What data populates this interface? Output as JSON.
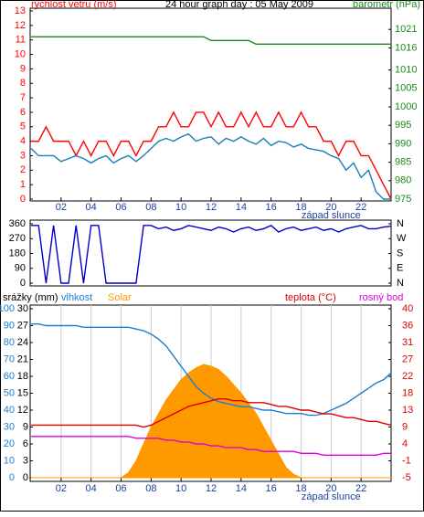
{
  "chart_data": [
    {
      "type": "line",
      "title": "24 hour graph day : 05 May 2009",
      "ylabel": "rychlost vetru (m/s)",
      "y2label": "barometr (hPa)",
      "x": [
        0,
        0.5,
        1,
        1.5,
        2,
        2.5,
        3,
        3.5,
        4,
        4.5,
        5,
        5.5,
        6,
        6.5,
        7,
        7.5,
        8,
        8.5,
        9,
        9.5,
        10,
        10.5,
        11,
        11.5,
        12,
        12.5,
        13,
        13.5,
        14,
        14.5,
        15,
        15.5,
        16,
        16.5,
        17,
        17.5,
        18,
        18.5,
        19,
        19.5,
        20,
        20.5,
        21,
        21.5,
        22,
        22.5,
        23,
        23.5,
        24
      ],
      "xlim": [
        0,
        24
      ],
      "xticks": [
        {
          "value": 2,
          "label": "02"
        },
        {
          "value": 4,
          "label": "04"
        },
        {
          "value": 6,
          "label": "06"
        },
        {
          "value": 8,
          "label": "08"
        },
        10,
        12,
        14,
        16,
        18,
        20,
        22
      ],
      "annotation": {
        "x": 20,
        "text": "západ slunce"
      },
      "ylim": [
        0,
        13
      ],
      "yticks": [
        0,
        1,
        2,
        3,
        4,
        5,
        6,
        7,
        8,
        9,
        10,
        11,
        12,
        13
      ],
      "y2lim": [
        975,
        1026
      ],
      "y2ticks": [
        975,
        980,
        985,
        990,
        995,
        1000,
        1005,
        1010,
        1016,
        1021
      ],
      "series": [
        {
          "color": "#ff0000",
          "values": [
            4,
            4,
            5,
            4,
            4,
            4,
            3,
            4,
            3,
            4,
            4,
            3,
            4,
            4,
            3,
            4,
            4,
            5,
            5,
            6,
            5,
            5,
            6,
            6,
            5,
            6,
            5,
            5,
            6,
            5,
            6,
            5,
            5,
            6,
            5,
            5,
            6,
            5,
            5,
            4,
            4,
            3,
            4,
            4,
            3,
            3,
            2,
            1,
            0
          ]
        },
        {
          "color": "#1a7fb5",
          "values": [
            3.5,
            3,
            3,
            3,
            2.6,
            2.8,
            3,
            2.8,
            2.5,
            2.8,
            3,
            2.5,
            2.8,
            3,
            2.6,
            3,
            3.5,
            4,
            4.2,
            4,
            4.3,
            4.5,
            4,
            4.2,
            4.3,
            3.8,
            4.2,
            4,
            4.3,
            4,
            3.8,
            4.2,
            3.7,
            4,
            3.9,
            3.6,
            3.8,
            3.5,
            3.4,
            3.3,
            3,
            2.8,
            2,
            2.5,
            1.5,
            2,
            0.5,
            0,
            0
          ]
        },
        {
          "color": "#1a8a1a",
          "axis": "y2",
          "values": [
            1019,
            1019,
            1019,
            1019,
            1019,
            1019,
            1019,
            1019,
            1019,
            1019,
            1019,
            1019,
            1019,
            1019,
            1019,
            1019,
            1019,
            1019,
            1019,
            1019,
            1019,
            1019,
            1019,
            1019,
            1018,
            1018,
            1018,
            1018,
            1018,
            1018,
            1017,
            1017,
            1017,
            1017,
            1017,
            1017,
            1017,
            1017,
            1017,
            1017,
            1017,
            1017,
            1017,
            1017,
            1017,
            1017,
            1017,
            1017,
            1017
          ]
        }
      ]
    },
    {
      "type": "line",
      "x": [
        0,
        0.5,
        1,
        1.5,
        2,
        2.5,
        3,
        3.5,
        4,
        4.5,
        5,
        5.5,
        6,
        6.5,
        7,
        7.5,
        8,
        8.5,
        9,
        9.5,
        10,
        10.5,
        11,
        11.5,
        12,
        12.5,
        13,
        13.5,
        14,
        14.5,
        15,
        15.5,
        16,
        16.5,
        17,
        17.5,
        18,
        18.5,
        19,
        19.5,
        20,
        20.5,
        21,
        21.5,
        22,
        22.5,
        23,
        23.5,
        24
      ],
      "xlim": [
        0,
        24
      ],
      "ylim": [
        0,
        360
      ],
      "yticks": [
        0,
        90,
        180,
        270,
        360
      ],
      "y2lim": [
        0,
        360
      ],
      "y2ticks": [
        {
          "value": 0,
          "label": "N"
        },
        {
          "value": 90,
          "label": "E"
        },
        {
          "value": 180,
          "label": "S"
        },
        {
          "value": 270,
          "label": "W"
        },
        {
          "value": 360,
          "label": "N"
        }
      ],
      "series": [
        {
          "color": "#0000cc",
          "values": [
            350,
            350,
            0,
            350,
            0,
            0,
            350,
            0,
            350,
            350,
            0,
            0,
            0,
            0,
            0,
            350,
            350,
            330,
            340,
            320,
            330,
            350,
            340,
            330,
            320,
            340,
            330,
            310,
            330,
            340,
            320,
            330,
            350,
            310,
            330,
            340,
            320,
            330,
            340,
            320,
            330,
            310,
            330,
            340,
            350,
            330,
            330,
            340,
            345
          ]
        }
      ]
    },
    {
      "type": "line",
      "ylabel": "srážky (mm)",
      "x": [
        0,
        0.5,
        1,
        1.5,
        2,
        2.5,
        3,
        3.5,
        4,
        4.5,
        5,
        5.5,
        6,
        6.5,
        7,
        7.5,
        8,
        8.5,
        9,
        9.5,
        10,
        10.5,
        11,
        11.5,
        12,
        12.5,
        13,
        13.5,
        14,
        14.5,
        15,
        15.5,
        16,
        16.5,
        17,
        17.5,
        18,
        18.5,
        19,
        19.5,
        20,
        20.5,
        21,
        21.5,
        22,
        22.5,
        23,
        23.5,
        24
      ],
      "xlim": [
        0,
        24
      ],
      "xticks": [
        {
          "value": 2,
          "label": "02"
        },
        {
          "value": 4,
          "label": "04"
        },
        {
          "value": 6,
          "label": "06"
        },
        {
          "value": 8,
          "label": "08"
        },
        10,
        12,
        14,
        16,
        18,
        20,
        22
      ],
      "grid": true,
      "annotation": {
        "x": 20,
        "text": "západ slunce"
      },
      "ylim": [
        0,
        30
      ],
      "yticks": [
        0,
        3,
        6,
        9,
        12,
        15,
        18,
        21,
        24,
        27,
        30
      ],
      "y2lim": [
        0,
        100
      ],
      "y2ticks": [
        0,
        10,
        20,
        30,
        40,
        50,
        60,
        70,
        80,
        90,
        100
      ],
      "y3lim": [
        -5,
        40
      ],
      "y3ticks": [
        -5,
        {
          "value": -0.5,
          "label": "-1"
        },
        4,
        {
          "value": 8.5,
          "label": "9"
        },
        13,
        {
          "value": 17.5,
          "label": "18"
        },
        22,
        {
          "value": 26.5,
          "label": "27"
        },
        31,
        {
          "value": 35.5,
          "label": "36"
        },
        40
      ],
      "series": [
        {
          "name": "Solar",
          "color": "#ff9900",
          "axis": "y2",
          "area": true,
          "values": [
            0,
            0,
            0,
            0,
            0,
            0,
            0,
            0,
            0,
            0,
            0,
            0,
            0,
            3,
            10,
            20,
            30,
            38,
            46,
            52,
            58,
            62,
            65,
            67,
            66,
            64,
            60,
            55,
            50,
            44,
            38,
            30,
            22,
            14,
            6,
            2,
            0,
            0,
            0,
            0,
            0,
            0,
            0,
            0,
            0,
            0,
            0,
            0,
            0
          ]
        },
        {
          "name": "vlhkost",
          "color": "#1a7fd0",
          "axis": "y2",
          "values": [
            91,
            91,
            90,
            90,
            90,
            90,
            90,
            89,
            89,
            89,
            89,
            89,
            89,
            89,
            88,
            87,
            85,
            82,
            78,
            72,
            66,
            60,
            54,
            50,
            47,
            45,
            44,
            43,
            42,
            42,
            41,
            40,
            40,
            39,
            38,
            38,
            38,
            37,
            37,
            38,
            40,
            42,
            44,
            47,
            50,
            53,
            56,
            58,
            62
          ]
        },
        {
          "name": "teplota (°C)",
          "color": "#dd0000",
          "axis": "y3",
          "values": [
            9,
            9,
            9,
            9,
            9,
            9,
            9,
            9,
            9,
            9,
            9,
            9,
            9,
            9,
            9,
            8.5,
            9,
            10,
            11,
            12,
            13,
            14,
            14.5,
            15,
            15.5,
            16,
            16,
            15.5,
            15.5,
            15,
            15,
            15,
            14.5,
            14,
            14,
            13.5,
            13,
            13,
            12.5,
            12,
            12,
            11.5,
            11,
            11,
            10.5,
            10,
            10,
            9.5,
            9
          ]
        },
        {
          "name": "rosný bod",
          "color": "#dd00dd",
          "axis": "y3",
          "values": [
            6,
            6,
            6,
            6,
            6,
            6,
            6,
            6,
            6,
            6,
            6,
            6,
            6,
            6,
            5.5,
            5.5,
            5.5,
            5.5,
            5,
            5,
            4.5,
            4.5,
            4,
            4,
            3.5,
            3.5,
            3,
            3,
            3,
            2.5,
            2.5,
            2,
            2,
            2,
            2,
            2,
            1.5,
            1.5,
            1.5,
            1,
            1,
            1,
            1,
            1,
            1,
            1,
            1,
            1.5,
            1.5
          ]
        }
      ]
    }
  ]
}
